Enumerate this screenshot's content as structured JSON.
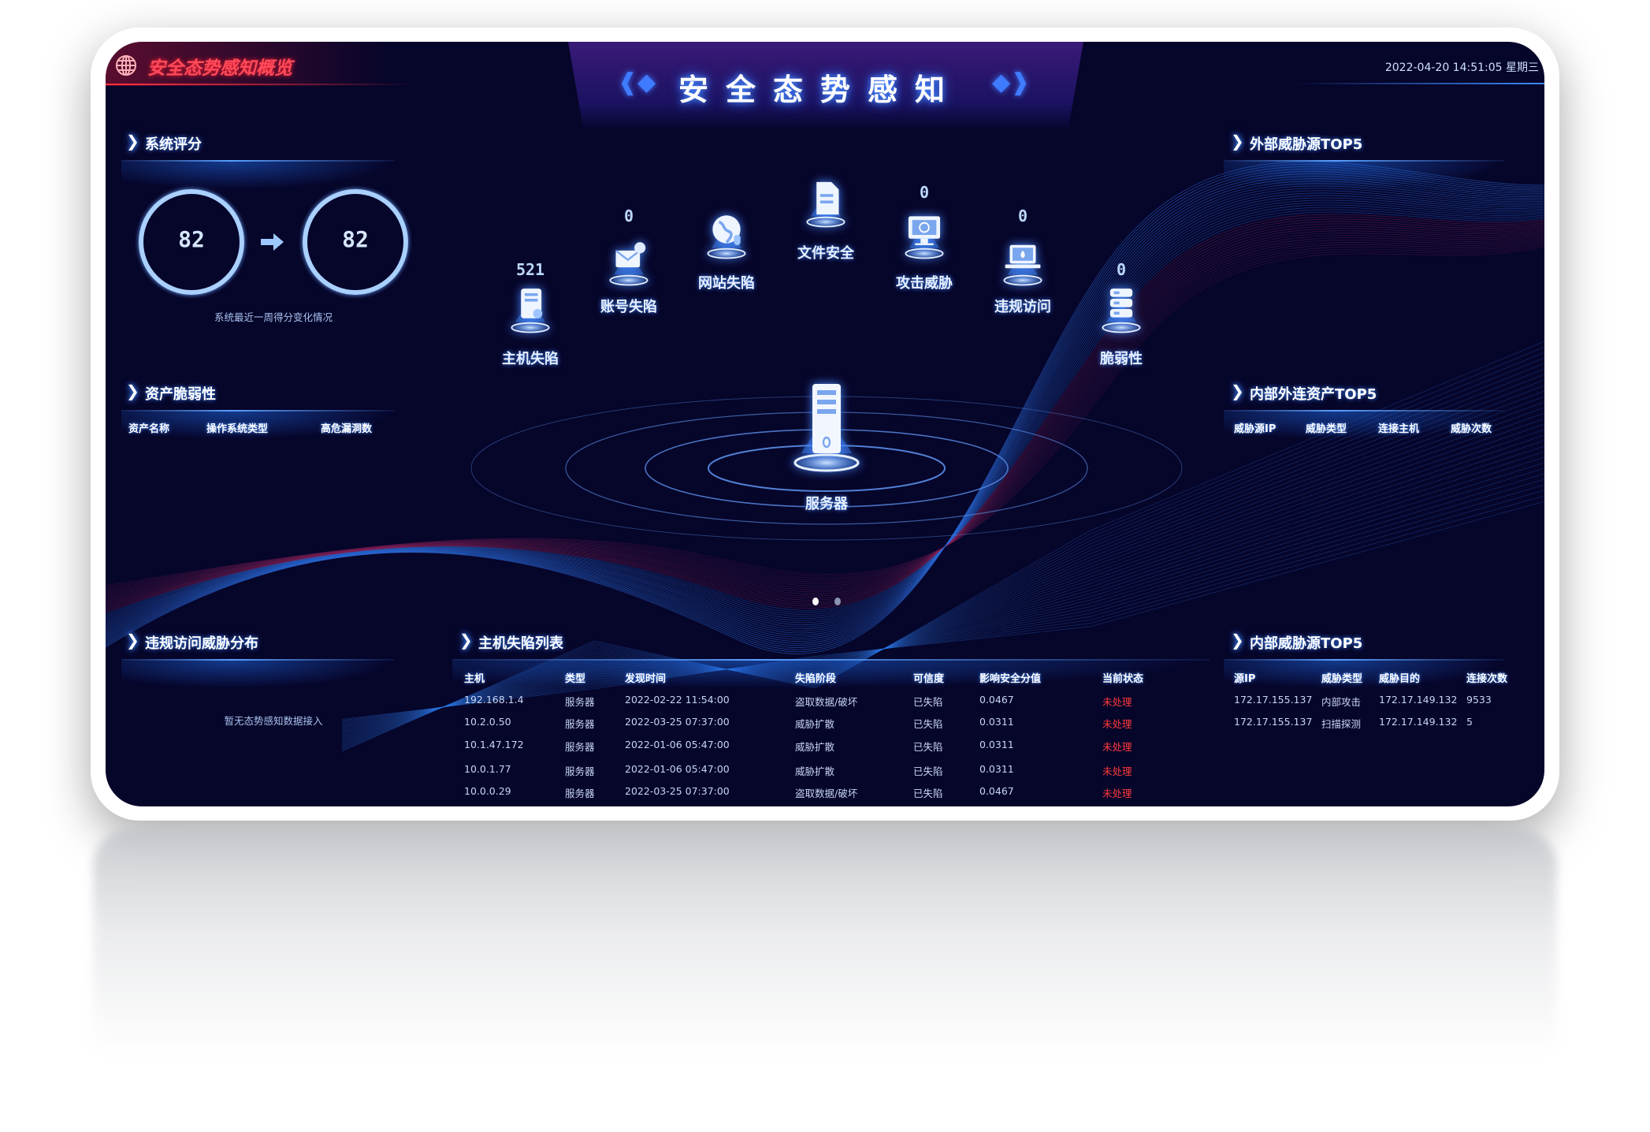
{
  "app_title": "安全态势感知概览",
  "main_title": "安全态势感知",
  "datetime": "2022-04-20 14:51:05 星期三",
  "colors": {
    "background": "#06052a",
    "accent": "#3d86ff",
    "title_red": "#ff4a5a",
    "status_red": "#ff3b3b",
    "ring": "#a9d0ff"
  },
  "system_score": {
    "title": "系统评分",
    "before": "82",
    "after": "82",
    "caption": "系统最近一周得分变化情况",
    "arrow_icon": "arrow-right-icon"
  },
  "asset_vuln": {
    "title": "资产脆弱性",
    "columns": [
      "资产名称",
      "操作系统类型",
      "高危漏洞数"
    ],
    "rows": []
  },
  "violation": {
    "title": "违规访问威胁分布",
    "empty_text": "暂无态势感知数据接入"
  },
  "nodes": [
    {
      "key": "host",
      "label": "主机失陷",
      "count": "521",
      "icon": "server-alert-icon"
    },
    {
      "key": "account",
      "label": "账号失陷",
      "count": "0",
      "icon": "mail-alert-icon"
    },
    {
      "key": "website",
      "label": "网站失陷",
      "icon": "globe-alert-icon"
    },
    {
      "key": "file",
      "label": "文件安全",
      "icon": "document-icon"
    },
    {
      "key": "attack",
      "label": "攻击威胁",
      "count": "0",
      "icon": "monitor-threat-icon"
    },
    {
      "key": "violation",
      "label": "违规访问",
      "count": "0",
      "icon": "laptop-icon"
    },
    {
      "key": "vuln",
      "label": "脆弱性",
      "count": "0",
      "icon": "database-icon"
    }
  ],
  "server": {
    "label": "服务器",
    "icon": "server-tower-icon"
  },
  "carousel": {
    "pages": 2,
    "active": 1
  },
  "host_list": {
    "title": "主机失陷列表",
    "columns": [
      "主机",
      "类型",
      "发现时间",
      "失陷阶段",
      "可信度",
      "影响安全分值",
      "当前状态"
    ],
    "rows": [
      [
        "192.168.1.4",
        "服务器",
        "2022-02-22 11:54:00",
        "盗取数据/破坏",
        "已失陷",
        "0.0467",
        "未处理"
      ],
      [
        "10.2.0.50",
        "服务器",
        "2022-03-25 07:37:00",
        "威胁扩散",
        "已失陷",
        "0.0311",
        "未处理"
      ],
      [
        "10.1.47.172",
        "服务器",
        "2022-01-06 05:47:00",
        "威胁扩散",
        "已失陷",
        "0.0311",
        "未处理"
      ],
      [
        "10.0.1.77",
        "服务器",
        "2022-01-06 05:47:00",
        "威胁扩散",
        "已失陷",
        "0.0311",
        "未处理"
      ],
      [
        "10.0.0.29",
        "服务器",
        "2022-03-25 07:37:00",
        "盗取数据/破坏",
        "已失陷",
        "0.0467",
        "未处理"
      ]
    ]
  },
  "external_threat": {
    "title": "外部威胁源TOP5",
    "rows": []
  },
  "internal_outbound": {
    "title": "内部外连资产TOP5",
    "columns": [
      "威胁源IP",
      "威胁类型",
      "连接主机",
      "威胁次数"
    ],
    "rows": []
  },
  "internal_threat": {
    "title": "内部威胁源TOP5",
    "columns": [
      "源IP",
      "威胁类型",
      "威胁目的",
      "连接次数"
    ],
    "rows": [
      [
        "172.17.155.137",
        "内部攻击",
        "172.17.149.132",
        "9533"
      ],
      [
        "172.17.155.137",
        "扫描探测",
        "172.17.149.132",
        "5"
      ]
    ]
  }
}
